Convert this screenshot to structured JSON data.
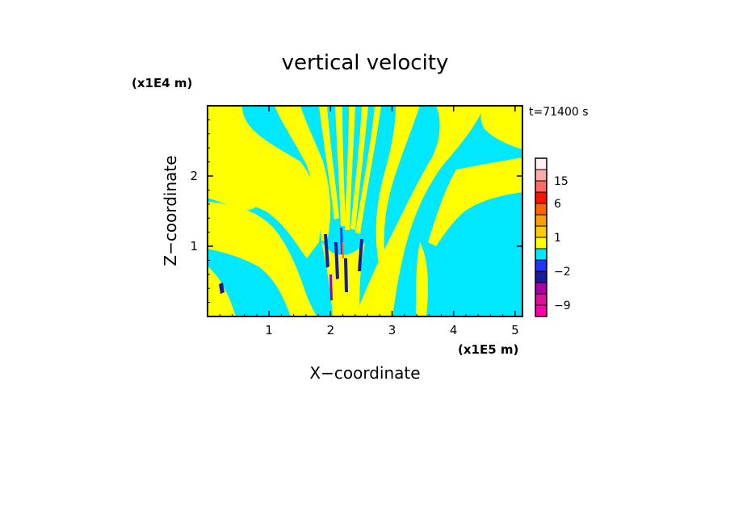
{
  "chart_data": {
    "type": "heatmap",
    "title": "vertical velocity",
    "xlabel": "X−coordinate",
    "ylabel": "Z−coordinate",
    "x_unit_label": "(x1E5 m)",
    "y_unit_label": "(x1E4 m)",
    "time_label": "t=71400 s",
    "xlim": [
      0,
      5.12
    ],
    "ylim": [
      0,
      3.0
    ],
    "x_ticks": [
      1,
      2,
      3,
      4,
      5
    ],
    "x_tick_labels": [
      "1",
      "2",
      "3",
      "4",
      "5"
    ],
    "y_ticks": [
      1,
      2
    ],
    "y_tick_labels": [
      "1",
      "2"
    ],
    "colorbar": {
      "levels": [
        {
          "min": -12,
          "max": -9,
          "color": "#ff00aa"
        },
        {
          "min": -9,
          "max": -6,
          "color": "#dd1199"
        },
        {
          "min": -6,
          "max": -4,
          "color": "#aa00aa"
        },
        {
          "min": -4,
          "max": -2,
          "color": "#1a1aa0"
        },
        {
          "min": -2,
          "max": -1,
          "color": "#2233ff"
        },
        {
          "min": -1,
          "max": 0,
          "color": "#00e8ff"
        },
        {
          "min": 0,
          "max": 1,
          "color": "#ffff00"
        },
        {
          "min": 1,
          "max": 2,
          "color": "#ffcc00"
        },
        {
          "min": 2,
          "max": 4,
          "color": "#ffa000"
        },
        {
          "min": 4,
          "max": 6,
          "color": "#ff6600"
        },
        {
          "min": 6,
          "max": 10,
          "color": "#ff1100"
        },
        {
          "min": 10,
          "max": 15,
          "color": "#ff6a66"
        },
        {
          "min": 15,
          "max": 20,
          "color": "#ffaaaa"
        },
        {
          "min": 20,
          "max": 30,
          "color": "#ffeeee"
        }
      ],
      "labels": [
        {
          "value": 15,
          "text": "15"
        },
        {
          "value": 6,
          "text": "6"
        },
        {
          "value": 1,
          "text": "1"
        },
        {
          "value": -2,
          "text": "−2"
        },
        {
          "value": -9,
          "text": "−9"
        }
      ]
    },
    "field_description": "Yellow/cyan banded vertical-velocity field forming a V-shaped wave fan centred near x=2.2, with dark blue/purple cores near x=2.0-2.5 at low levels"
  }
}
